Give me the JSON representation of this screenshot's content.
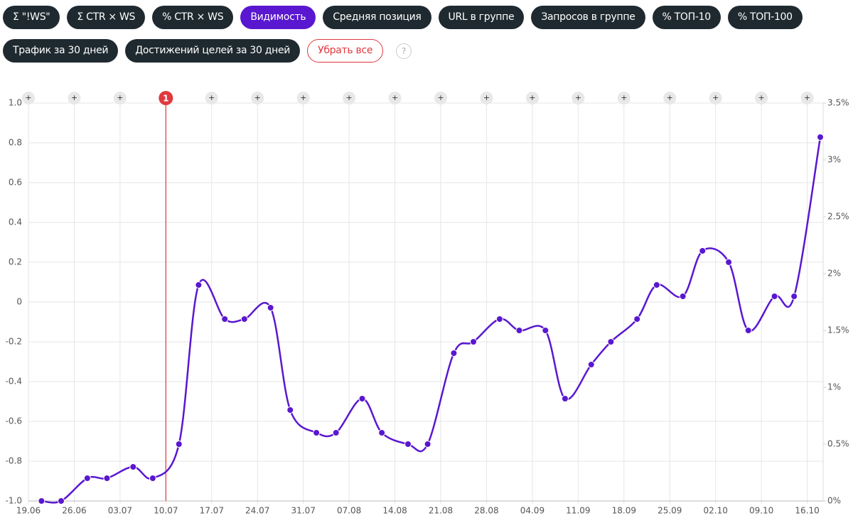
{
  "ui": {
    "buttons": [
      {
        "label": "Σ \"!WS\""
      },
      {
        "label": "Σ CTR × WS"
      },
      {
        "label": "% CTR × WS"
      },
      {
        "label": "Видимость",
        "active": true
      },
      {
        "label": "Средняя позиция"
      },
      {
        "label": "URL в группе"
      },
      {
        "label": "Запросов в группе"
      },
      {
        "label": "% ТОП-10"
      },
      {
        "label": "% ТОП-100"
      },
      {
        "label": "Трафик за 30 дней"
      },
      {
        "label": "Достижений целей за 30 дней"
      }
    ],
    "clear_button": "Убрать все",
    "help": "?"
  },
  "chart_data": {
    "type": "line",
    "x": [
      "21.06",
      "24.06",
      "28.06",
      "01.07",
      "05.07",
      "08.07",
      "12.07",
      "15.07",
      "19.07",
      "22.07",
      "26.07",
      "29.07",
      "02.08",
      "05.08",
      "09.08",
      "12.08",
      "16.08",
      "19.08",
      "23.08",
      "26.08",
      "30.08",
      "02.09",
      "06.09",
      "09.09",
      "13.09",
      "16.09",
      "20.09",
      "23.09",
      "27.09",
      "30.09",
      "04.10",
      "07.10",
      "11.10",
      "14.10",
      "18.10"
    ],
    "series": [
      {
        "color": "#5a17d0",
        "axis": "y2",
        "values": [
          0,
          0,
          0.2,
          0.2,
          0.3,
          0.2,
          0.5,
          1.9,
          1.6,
          1.6,
          1.7,
          0.8,
          0.6,
          0.6,
          0.9,
          0.6,
          0.5,
          0.5,
          1.3,
          1.4,
          1.6,
          1.5,
          1.5,
          0.9,
          1.2,
          1.4,
          1.6,
          1.9,
          1.8,
          2.2,
          2.1,
          1.5,
          1.8,
          1.8,
          3.2
        ]
      }
    ],
    "xlim": [
      "19.06",
      "18.10"
    ],
    "xticks": [
      "19.06",
      "26.06",
      "03.07",
      "10.07",
      "17.07",
      "24.07",
      "31.07",
      "07.08",
      "14.08",
      "21.08",
      "28.08",
      "04.09",
      "11.09",
      "18.09",
      "25.09",
      "02.10",
      "09.10",
      "16.10"
    ],
    "ylim": [
      -1,
      1
    ],
    "yticks": [
      {
        "value": 1,
        "label": "1.0"
      },
      0.8,
      0.6,
      0.4,
      0.2,
      0,
      -0.2,
      -0.4,
      -0.6,
      -0.8,
      {
        "value": -1,
        "label": "-1.0"
      }
    ],
    "y2lim": [
      0,
      3.5
    ],
    "y2ticks": [
      {
        "value": 0,
        "label": "0%"
      },
      {
        "value": 0.5,
        "label": "0.5%"
      },
      {
        "value": 1,
        "label": "1%"
      },
      {
        "value": 1.5,
        "label": "1.5%"
      },
      {
        "value": 2,
        "label": "2%"
      },
      {
        "value": 2.5,
        "label": "2.5%"
      },
      {
        "value": 3,
        "label": "3%"
      },
      {
        "value": 3.5,
        "label": "3.5%"
      }
    ],
    "grid": true,
    "event_marker": {
      "x": "10.07",
      "label": "1",
      "color": "#e0393e"
    },
    "add_label": "+"
  }
}
